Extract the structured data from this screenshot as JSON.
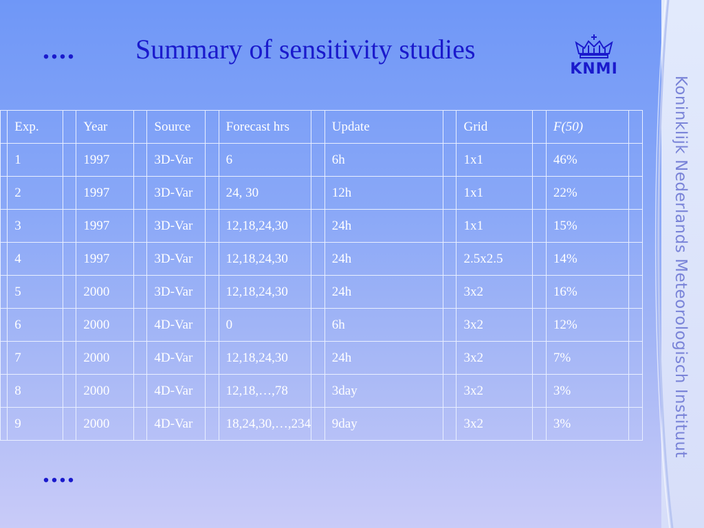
{
  "slide": {
    "title": "Summary of sensitivity studies",
    "ellipsis_top": "....",
    "ellipsis_bottom": "....",
    "side_text": "Koninklijk Nederlands Meteorologisch Instituut",
    "logo_text": "KNMI",
    "accent_color": "#1a1acc"
  },
  "table": {
    "headers": [
      "Exp.",
      "Year",
      "Source",
      "Forecast hrs",
      "Update",
      "Grid",
      "F(50)"
    ],
    "rows": [
      [
        "1",
        "1997",
        "3D-Var",
        "6",
        "6h",
        "1x1",
        "46%"
      ],
      [
        "2",
        "1997",
        "3D-Var",
        "24, 30",
        "12h",
        "1x1",
        "22%"
      ],
      [
        "3",
        "1997",
        "3D-Var",
        "12,18,24,30",
        "24h",
        "1x1",
        "15%"
      ],
      [
        "4",
        "1997",
        "3D-Var",
        "12,18,24,30",
        "24h",
        "2.5x2.5",
        "14%"
      ],
      [
        "5",
        "2000",
        "3D-Var",
        "12,18,24,30",
        "24h",
        "3x2",
        "16%"
      ],
      [
        "6",
        "2000",
        "4D-Var",
        "0",
        "6h",
        "3x2",
        "12%"
      ],
      [
        "7",
        "2000",
        "4D-Var",
        "12,18,24,30",
        "24h",
        "3x2",
        "7%"
      ],
      [
        "8",
        "2000",
        "4D-Var",
        "12,18,…,78",
        "3day",
        "3x2",
        "3%"
      ],
      [
        "9",
        "2000",
        "4D-Var",
        "18,24,30,…,234",
        "9day",
        "3x2",
        "3%"
      ]
    ]
  }
}
